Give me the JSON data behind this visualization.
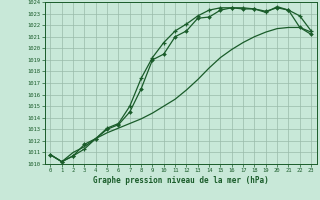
{
  "title": "Graphe pression niveau de la mer (hPa)",
  "bg_color": "#c8e8d8",
  "grid_color": "#99bbaa",
  "line_color": "#1a5c2a",
  "xlim": [
    0,
    23
  ],
  "ylim": [
    1010,
    1024
  ],
  "xticks": [
    0,
    1,
    2,
    3,
    4,
    5,
    6,
    7,
    8,
    9,
    10,
    11,
    12,
    13,
    14,
    15,
    16,
    17,
    18,
    19,
    20,
    21,
    22,
    23
  ],
  "yticks": [
    1010,
    1011,
    1012,
    1013,
    1014,
    1015,
    1016,
    1017,
    1018,
    1019,
    1020,
    1021,
    1022,
    1023,
    1024
  ],
  "series1_x": [
    0,
    1,
    2,
    3,
    4,
    5,
    6,
    7,
    8,
    9,
    10,
    11,
    12,
    13,
    14,
    15,
    16,
    17,
    18,
    19,
    20,
    21,
    22,
    23
  ],
  "series1_y": [
    1010.8,
    1010.2,
    1010.7,
    1011.7,
    1012.2,
    1013.0,
    1013.4,
    1014.5,
    1016.5,
    1019.0,
    1019.5,
    1021.0,
    1021.5,
    1022.6,
    1022.7,
    1023.3,
    1023.5,
    1023.4,
    1023.4,
    1023.2,
    1023.5,
    1023.3,
    1021.8,
    1021.2
  ],
  "series2_x": [
    0,
    1,
    2,
    3,
    4,
    5,
    6,
    7,
    8,
    9,
    10,
    11,
    12,
    13,
    14,
    15,
    16,
    17,
    18,
    19,
    20,
    21,
    22,
    23
  ],
  "series2_y": [
    1010.8,
    1010.2,
    1010.7,
    1011.3,
    1012.2,
    1013.1,
    1013.5,
    1015.0,
    1017.4,
    1019.2,
    1020.5,
    1021.5,
    1022.1,
    1022.8,
    1023.3,
    1023.5,
    1023.5,
    1023.5,
    1023.4,
    1023.1,
    1023.6,
    1023.3,
    1022.8,
    1021.5
  ],
  "series3_x": [
    0,
    1,
    2,
    3,
    4,
    5,
    6,
    7,
    8,
    9,
    10,
    11,
    12,
    13,
    14,
    15,
    16,
    17,
    18,
    19,
    20,
    21,
    22,
    23
  ],
  "series3_y": [
    1010.8,
    1010.2,
    1011.0,
    1011.5,
    1012.2,
    1012.7,
    1013.1,
    1013.5,
    1013.9,
    1014.4,
    1015.0,
    1015.6,
    1016.4,
    1017.3,
    1018.3,
    1019.2,
    1019.9,
    1020.5,
    1021.0,
    1021.4,
    1021.7,
    1021.8,
    1021.8,
    1021.4
  ]
}
